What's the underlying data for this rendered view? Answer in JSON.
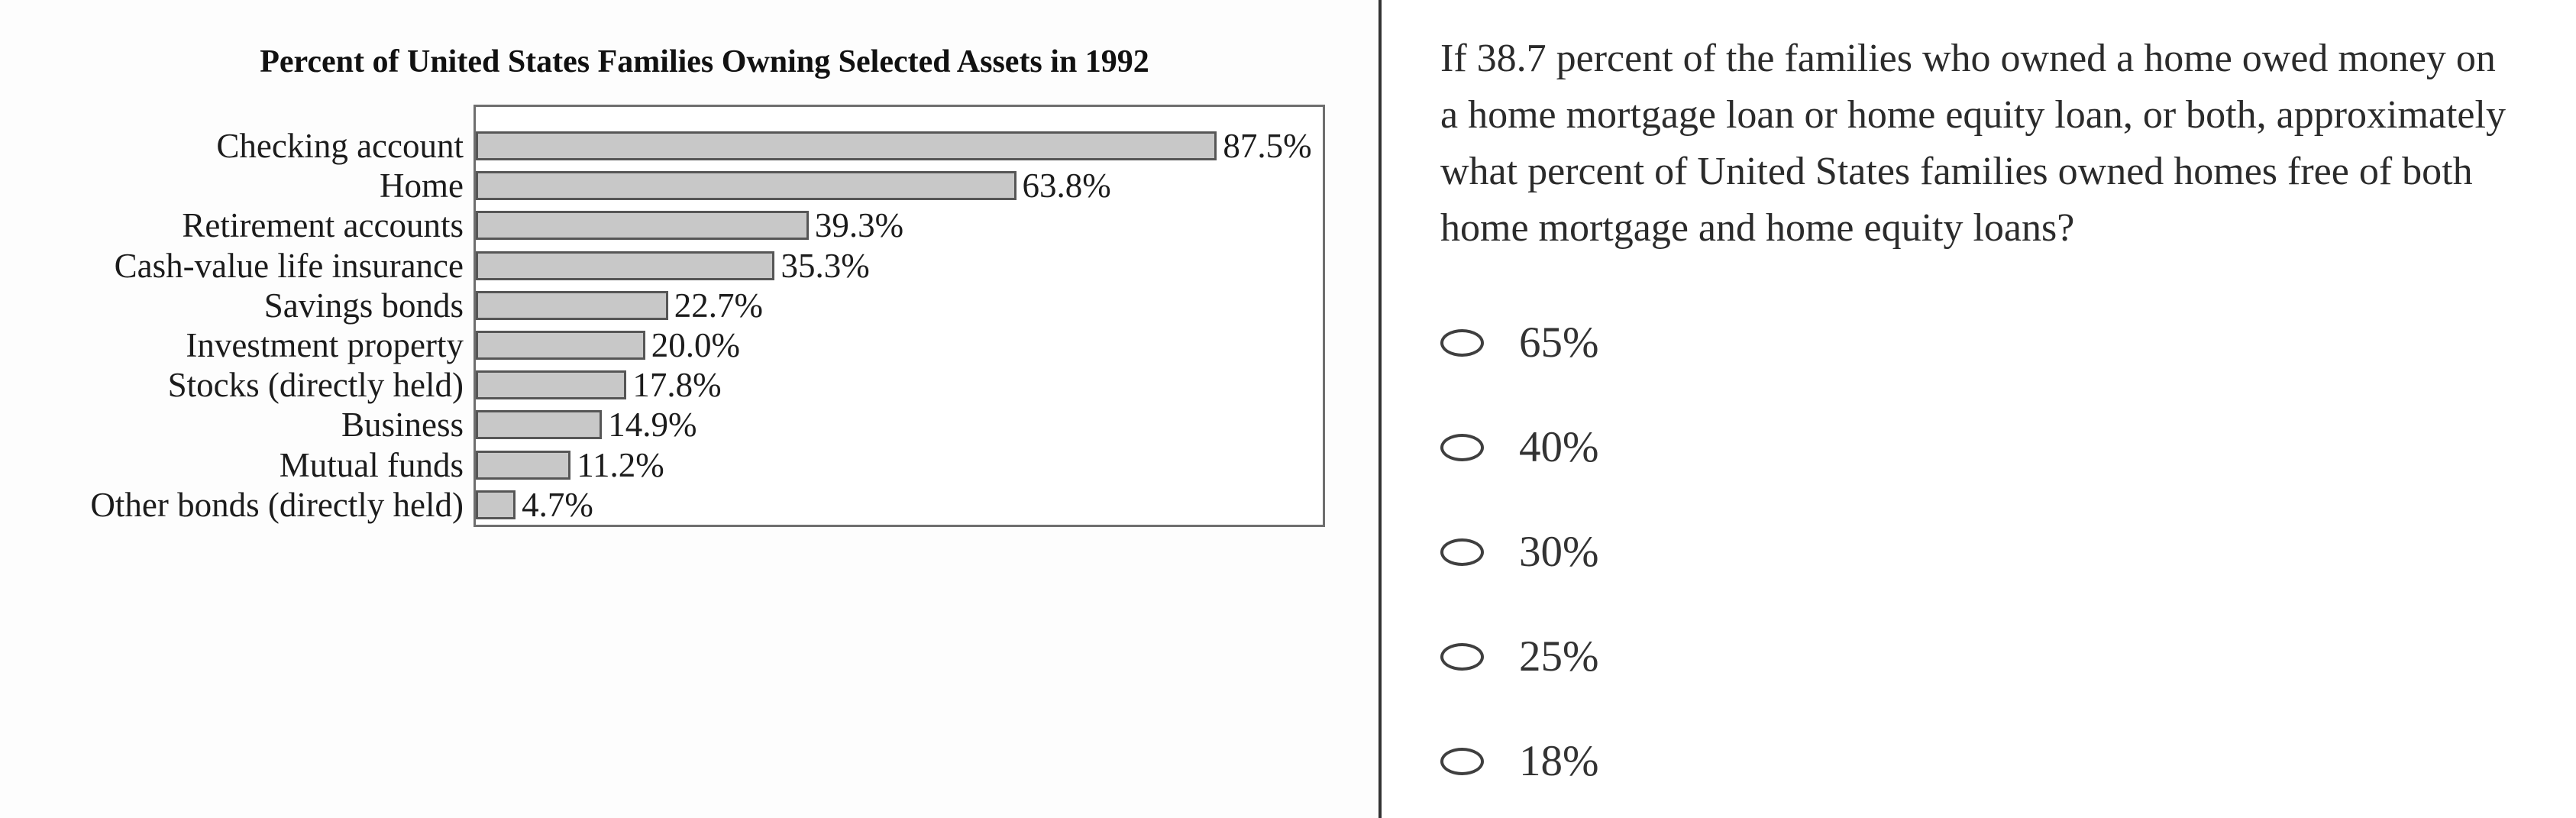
{
  "chart_data": {
    "type": "bar",
    "orientation": "horizontal",
    "title": "Percent of United States Families Owning Selected Assets in 1992",
    "categories": [
      "Checking account",
      "Home",
      "Retirement accounts",
      "Cash-value life insurance",
      "Savings bonds",
      "Investment property",
      "Stocks (directly held)",
      "Business",
      "Mutual funds",
      "Other bonds (directly held)"
    ],
    "values": [
      87.5,
      63.8,
      39.3,
      35.3,
      22.7,
      20.0,
      17.8,
      14.9,
      11.2,
      4.7
    ],
    "value_labels": [
      "87.5%",
      "63.8%",
      "39.3%",
      "35.3%",
      "22.7%",
      "20.0%",
      "17.8%",
      "14.9%",
      "11.2%",
      "4.7%"
    ],
    "xlabel": "",
    "ylabel": "",
    "xlim": [
      0,
      100
    ],
    "grid": false,
    "legend": "none",
    "bar_color": "#c8c8c8",
    "bar_border_color": "#565656",
    "plot_border_color": "#6e6e6e"
  },
  "question": {
    "text": "If 38.7 percent of the families who owned a home owed money on a home mortgage loan or home equity loan, or both, approximately what percent of United States families owned homes free of both home mortgage and home equity loans?",
    "lines": [
      "If 38.7 percent of the families who owned a home owed money on",
      "a home mortgage loan or home equity loan, or both, approximately",
      "what percent of United States families owned homes free of both",
      "home mortgage and home equity loans?"
    ]
  },
  "options": [
    "65%",
    "40%",
    "30%",
    "25%",
    "18%"
  ],
  "colors": {
    "divider": "#333333",
    "background": "#fdfdfd",
    "question_text": "#2b2b2b",
    "option_text": "#333333"
  }
}
